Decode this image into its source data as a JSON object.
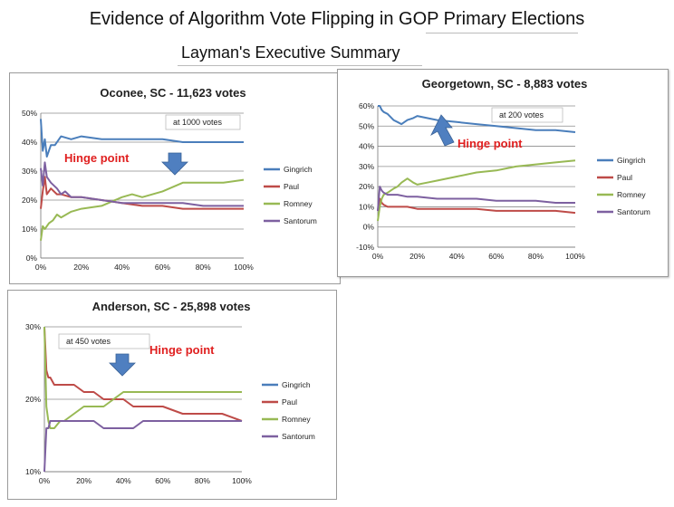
{
  "header": {
    "title": "Evidence of Algorithm Vote Flipping in GOP Primary Elections",
    "subtitle": "Layman's Executive Summary"
  },
  "colors": {
    "Gingrich": "#4a7ebb",
    "Paul": "#be4b48",
    "Romney": "#98b954",
    "Santorum": "#7d60a0",
    "grid": "#8c8c8c",
    "arrow": "#4f7fc0",
    "hinge": "#e02020"
  },
  "chart_data": [
    {
      "type": "line",
      "title": "Oconee, SC - 11,623 votes",
      "annotation": "at 1000 votes",
      "hinge_label": "Hinge point",
      "arrow": "down",
      "x_ticks": [
        "0%",
        "20%",
        "40%",
        "60%",
        "80%",
        "100%"
      ],
      "y_ticks": [
        "0%",
        "10%",
        "20%",
        "30%",
        "40%",
        "50%"
      ],
      "ylim": [
        0,
        50
      ],
      "xlim": [
        0,
        100
      ],
      "legend": "right",
      "series": [
        {
          "name": "Gingrich",
          "x": [
            0,
            1,
            2,
            3,
            5,
            7,
            10,
            15,
            20,
            30,
            40,
            50,
            60,
            70,
            80,
            90,
            100
          ],
          "y": [
            48,
            37,
            41,
            35,
            39,
            39,
            42,
            41,
            42,
            41,
            41,
            41,
            41,
            40,
            40,
            40,
            40
          ]
        },
        {
          "name": "Paul",
          "x": [
            0,
            1,
            2,
            3,
            5,
            8,
            10,
            15,
            20,
            30,
            40,
            50,
            60,
            70,
            80,
            90,
            100
          ],
          "y": [
            17,
            23,
            28,
            22,
            24,
            22,
            22,
            21,
            21,
            20,
            19,
            18,
            18,
            17,
            17,
            17,
            17
          ]
        },
        {
          "name": "Romney",
          "x": [
            0,
            1,
            2,
            4,
            6,
            8,
            10,
            15,
            20,
            30,
            40,
            45,
            50,
            60,
            70,
            80,
            90,
            100
          ],
          "y": [
            6,
            11,
            10,
            12,
            13,
            15,
            14,
            16,
            17,
            18,
            21,
            22,
            21,
            23,
            26,
            26,
            26,
            27
          ]
        },
        {
          "name": "Santorum",
          "x": [
            0,
            1,
            2,
            3,
            5,
            8,
            10,
            12,
            15,
            20,
            30,
            40,
            50,
            60,
            70,
            80,
            90,
            100
          ],
          "y": [
            31,
            25,
            33,
            28,
            26,
            24,
            22,
            23,
            21,
            21,
            20,
            19,
            19,
            19,
            19,
            18,
            18,
            18
          ]
        }
      ]
    },
    {
      "type": "line",
      "title": "Georgetown, SC - 8,883 votes",
      "annotation": "at 200 votes",
      "hinge_label": "Hinge point",
      "arrow": "up",
      "x_ticks": [
        "0%",
        "20%",
        "40%",
        "60%",
        "80%",
        "100%"
      ],
      "y_ticks": [
        "-10%",
        "0%",
        "10%",
        "20%",
        "30%",
        "40%",
        "50%",
        "60%"
      ],
      "ylim": [
        -10,
        60
      ],
      "xlim": [
        0,
        100
      ],
      "legend": "right",
      "series": [
        {
          "name": "Gingrich",
          "x": [
            0,
            1,
            2,
            3,
            5,
            8,
            10,
            12,
            15,
            18,
            20,
            25,
            30,
            40,
            50,
            60,
            70,
            80,
            90,
            100
          ],
          "y": [
            60,
            60,
            58,
            57,
            56,
            53,
            52,
            51,
            53,
            54,
            55,
            54,
            53,
            52,
            51,
            50,
            49,
            48,
            48,
            47
          ]
        },
        {
          "name": "Paul",
          "x": [
            0,
            1,
            2,
            3,
            5,
            8,
            10,
            15,
            20,
            30,
            40,
            50,
            60,
            70,
            80,
            90,
            100
          ],
          "y": [
            8,
            14,
            12,
            11,
            10,
            10,
            10,
            10,
            9,
            9,
            9,
            9,
            8,
            8,
            8,
            8,
            7
          ]
        },
        {
          "name": "Romney",
          "x": [
            0,
            1,
            2,
            3,
            5,
            8,
            10,
            12,
            15,
            18,
            20,
            25,
            30,
            40,
            50,
            60,
            70,
            80,
            90,
            100
          ],
          "y": [
            3,
            10,
            14,
            16,
            17,
            19,
            20,
            22,
            24,
            22,
            21,
            22,
            23,
            25,
            27,
            28,
            30,
            31,
            32,
            33
          ]
        },
        {
          "name": "Santorum",
          "x": [
            0,
            1,
            2,
            3,
            5,
            8,
            10,
            15,
            20,
            30,
            40,
            50,
            60,
            70,
            80,
            90,
            100
          ],
          "y": [
            8,
            20,
            18,
            17,
            16,
            16,
            16,
            15,
            15,
            14,
            14,
            14,
            13,
            13,
            13,
            12,
            12
          ]
        }
      ]
    },
    {
      "type": "line",
      "title": "Anderson, SC - 25,898 votes",
      "annotation": "at 450 votes",
      "hinge_label": "Hinge point",
      "arrow": "down",
      "x_ticks": [
        "0%",
        "20%",
        "40%",
        "60%",
        "80%",
        "100%"
      ],
      "y_ticks": [
        "10%",
        "20%",
        "30%"
      ],
      "ylim": [
        10,
        30
      ],
      "xlim": [
        0,
        100
      ],
      "legend": "right",
      "series": [
        {
          "name": "Gingrich",
          "x": [],
          "y": []
        },
        {
          "name": "Paul",
          "x": [
            0,
            1,
            2,
            3,
            5,
            8,
            10,
            15,
            20,
            25,
            30,
            35,
            40,
            45,
            50,
            60,
            70,
            80,
            90,
            100
          ],
          "y": [
            30,
            24,
            23,
            23,
            22,
            22,
            22,
            22,
            21,
            21,
            20,
            20,
            20,
            19,
            19,
            19,
            18,
            18,
            18,
            17
          ]
        },
        {
          "name": "Romney",
          "x": [
            0,
            1,
            2,
            3,
            5,
            8,
            10,
            15,
            20,
            25,
            30,
            35,
            40,
            45,
            50,
            60,
            70,
            80,
            90,
            100
          ],
          "y": [
            30,
            19,
            17,
            16,
            16,
            17,
            17,
            18,
            19,
            19,
            19,
            20,
            21,
            21,
            21,
            21,
            21,
            21,
            21,
            21
          ]
        },
        {
          "name": "Santorum",
          "x": [
            0,
            1,
            2,
            3,
            5,
            8,
            10,
            15,
            20,
            25,
            30,
            35,
            40,
            45,
            50,
            60,
            70,
            80,
            90,
            100
          ],
          "y": [
            10,
            16,
            16,
            17,
            17,
            17,
            17,
            17,
            17,
            17,
            16,
            16,
            16,
            16,
            17,
            17,
            17,
            17,
            17,
            17
          ]
        }
      ]
    }
  ]
}
